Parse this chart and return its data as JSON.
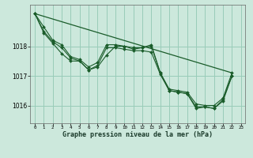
{
  "title": "Graphe pression niveau de la mer (hPa)",
  "background_color": "#cce8dc",
  "grid_color": "#99ccb8",
  "line_color": "#1a5c2a",
  "xlim": [
    -0.5,
    23.5
  ],
  "ylim": [
    1015.4,
    1019.4
  ],
  "yticks": [
    1016,
    1017,
    1018
  ],
  "xtick_labels": [
    "0",
    "1",
    "2",
    "3",
    "4",
    "5",
    "6",
    "7",
    "8",
    "9",
    "10",
    "11",
    "12",
    "13",
    "14",
    "15",
    "16",
    "17",
    "18",
    "19",
    "20",
    "21",
    "22",
    "23"
  ],
  "line1_x": [
    0,
    1,
    2,
    3,
    4,
    5,
    6,
    7,
    8,
    9,
    10,
    11,
    12,
    13,
    14,
    15,
    16,
    17,
    18,
    19,
    20,
    21,
    22
  ],
  "line1_y": [
    1019.1,
    1018.65,
    1018.2,
    1018.05,
    1017.65,
    1017.55,
    1017.3,
    1017.45,
    1018.05,
    1018.05,
    1018.0,
    1017.95,
    1017.95,
    1018.05,
    1017.1,
    1016.55,
    1016.5,
    1016.45,
    1016.05,
    1016.0,
    1016.0,
    1016.25,
    1017.1
  ],
  "line2_x": [
    0,
    1,
    2,
    3,
    4,
    5,
    6,
    7,
    8,
    9,
    10,
    11,
    12,
    13,
    14,
    15,
    16,
    17,
    18,
    19,
    20,
    21,
    22
  ],
  "line2_y": [
    1019.1,
    1018.5,
    1018.15,
    1017.95,
    1017.6,
    1017.5,
    1017.2,
    1017.35,
    1017.95,
    1017.95,
    1017.9,
    1017.85,
    1017.85,
    1017.8,
    1017.05,
    1016.5,
    1016.45,
    1016.4,
    1015.95,
    1015.95,
    1015.9,
    1016.2,
    1017.0
  ],
  "line3_x": [
    0,
    1,
    2,
    3,
    4,
    5,
    6,
    7,
    8,
    9,
    10,
    11,
    12,
    13,
    14,
    15,
    16,
    17,
    18,
    19,
    20,
    21,
    22
  ],
  "line3_y": [
    1019.1,
    1018.45,
    1018.1,
    1017.75,
    1017.5,
    1017.5,
    1017.2,
    1017.3,
    1017.7,
    1018.0,
    1018.0,
    1017.9,
    1017.95,
    1018.0,
    1017.1,
    1016.5,
    1016.45,
    1016.4,
    1015.9,
    1015.95,
    1015.9,
    1016.15,
    1017.0
  ],
  "trend_x": [
    0,
    22
  ],
  "trend_y": [
    1019.1,
    1017.1
  ],
  "figsize": [
    3.2,
    2.0
  ],
  "dpi": 100
}
